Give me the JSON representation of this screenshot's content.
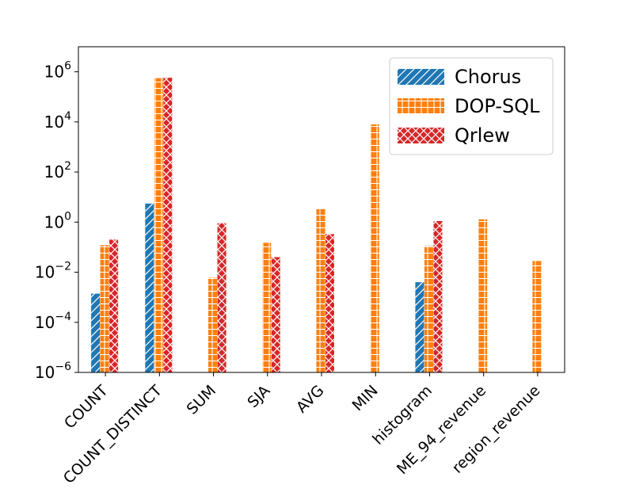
{
  "chart_data": {
    "type": "bar",
    "title": "",
    "xlabel": "",
    "ylabel": "",
    "yscale": "log",
    "ylim": [
      1e-06,
      10000000.0
    ],
    "yticks": [
      {
        "value": 1e-06,
        "base": "10",
        "exp": "−6"
      },
      {
        "value": 0.0001,
        "base": "10",
        "exp": "−4"
      },
      {
        "value": 0.01,
        "base": "10",
        "exp": "−2"
      },
      {
        "value": 1,
        "base": "10",
        "exp": "0"
      },
      {
        "value": 100,
        "base": "10",
        "exp": "2"
      },
      {
        "value": 10000,
        "base": "10",
        "exp": "4"
      },
      {
        "value": 1000000,
        "base": "10",
        "exp": "6"
      }
    ],
    "categories": [
      "COUNT",
      "COUNT_DISTINCT",
      "SUM",
      "SJA",
      "AVG",
      "MIN",
      "histogram",
      "ME_94_revenue",
      "region_revenue"
    ],
    "series": [
      {
        "name": "Chorus",
        "color": "#1f77b4",
        "hatch": "diagonal",
        "values": [
          0.0014,
          5.5,
          null,
          null,
          null,
          null,
          0.004,
          null,
          null
        ]
      },
      {
        "name": "DOP-SQL",
        "color": "#ff7f0e",
        "hatch": "grid",
        "values": [
          0.12,
          560000,
          0.006,
          0.15,
          3.5,
          8000,
          0.11,
          1.3,
          0.028
        ]
      },
      {
        "name": "Qrlew",
        "color": "#d62728",
        "hatch": "cross",
        "values": [
          0.2,
          580000,
          0.9,
          0.04,
          0.33,
          null,
          1.1,
          null,
          null
        ]
      }
    ],
    "legend_position": "top-right",
    "grid": false
  }
}
